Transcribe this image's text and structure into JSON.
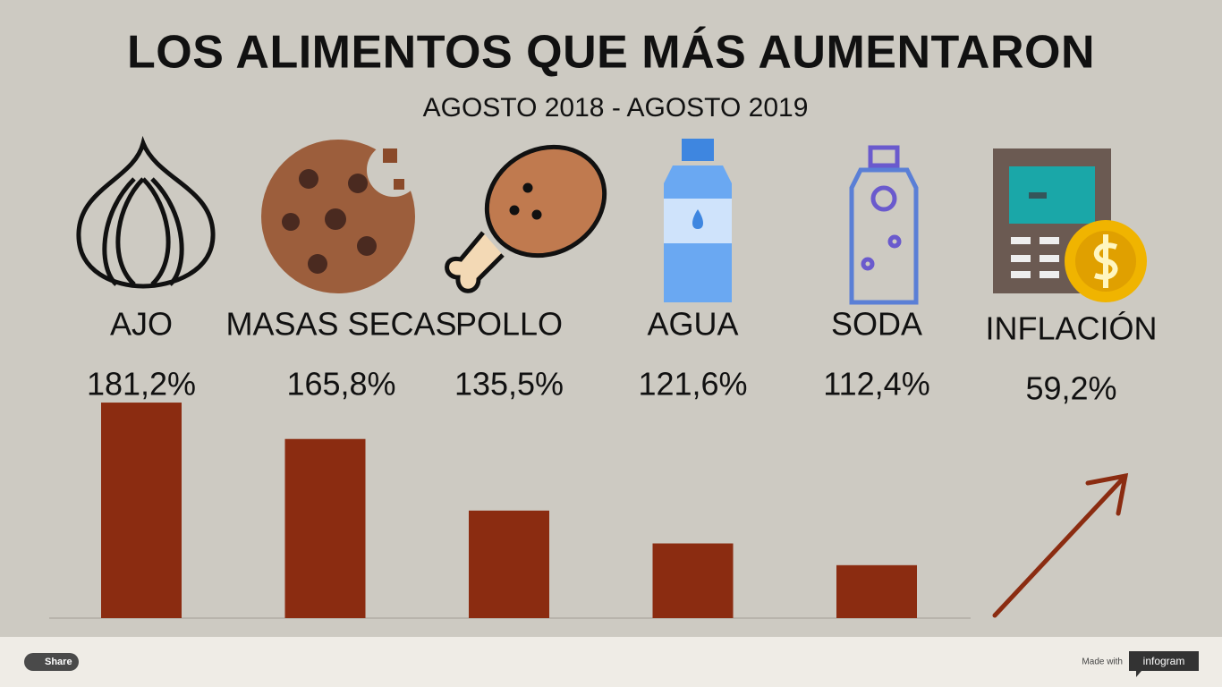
{
  "chart_data": {
    "type": "bar",
    "title": "LOS ALIMENTOS QUE MÁS AUMENTARON",
    "subtitle": "AGOSTO 2018 - AGOSTO 2019",
    "categories": [
      "AJO",
      "MASAS SECAS",
      "POLLO",
      "AGUA",
      "SODA"
    ],
    "values": [
      181.2,
      165.8,
      135.5,
      121.6,
      112.4
    ],
    "value_labels": [
      "181,2%",
      "165,8%",
      "135,5%",
      "121,6%",
      "112,4%"
    ],
    "color": "#8b2c11",
    "ylim": [
      90,
      185
    ],
    "highlight": {
      "label": "INFLACIÓN",
      "value": 59.2,
      "value_label": "59,2%"
    }
  },
  "footer": {
    "share": "Share",
    "made_with": "Made with",
    "brand": "infogram"
  }
}
